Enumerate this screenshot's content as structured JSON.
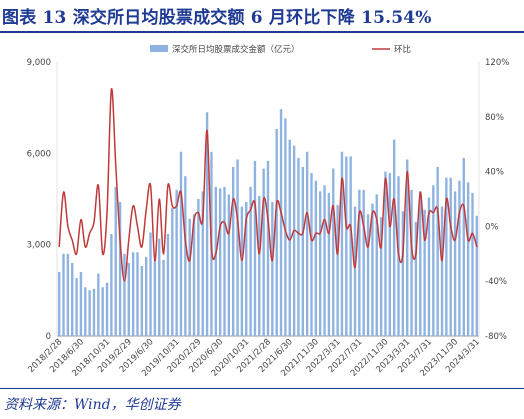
{
  "header": {
    "title": "图表 13  深交所日均股票成交额 6 月环比下降 15.54%"
  },
  "footer": {
    "source": "资料来源：Wind，华创证券"
  },
  "chart_data": {
    "type": "bar",
    "series": [
      {
        "name": "深交所日均股票成交金额（亿元）",
        "axis": "left",
        "kind": "bar",
        "color": "#8fb3e0",
        "values": [
          2100,
          2700,
          2700,
          2400,
          1900,
          2100,
          1600,
          1500,
          1550,
          2050,
          1600,
          1750,
          3350,
          4900,
          4400,
          2700,
          2400,
          2750,
          2750,
          2300,
          2600,
          3400,
          2500,
          3200,
          2500,
          3350,
          4200,
          4800,
          6050,
          5250,
          3850,
          4000,
          4500,
          4750,
          7350,
          6050,
          4900,
          4850,
          4900,
          4650,
          5550,
          5800,
          4250,
          4400,
          4900,
          5750,
          4600,
          5500,
          5750,
          4400,
          6800,
          7450,
          7150,
          6450,
          6250,
          5850,
          5550,
          6050,
          5350,
          5100,
          4750,
          4950,
          4700,
          5500,
          4300,
          6050,
          5900,
          5900,
          4250,
          4800,
          4800,
          4000,
          4350,
          4650,
          3900,
          5400,
          5350,
          6450,
          5250,
          4100,
          5800,
          4800,
          3750,
          4750,
          4150,
          4550,
          4950,
          5550,
          4250,
          5200,
          5200,
          4750,
          5100,
          5850,
          5050,
          4700,
          3950
        ]
      },
      {
        "name": "环比",
        "axis": "right",
        "kind": "line",
        "color": "#c0393b",
        "values": [
          -15,
          25,
          0,
          -10,
          -20,
          5,
          -15,
          -5,
          3,
          30,
          -20,
          10,
          100,
          45,
          -10,
          -40,
          -10,
          15,
          0,
          -15,
          12,
          30,
          -25,
          20,
          -20,
          30,
          15,
          15,
          25,
          -10,
          -25,
          5,
          10,
          5,
          70,
          -15,
          -20,
          0,
          3,
          -5,
          20,
          5,
          -25,
          5,
          12,
          17,
          -20,
          20,
          5,
          -25,
          17,
          10,
          -3,
          -10,
          -3,
          -5,
          -5,
          10,
          -10,
          -5,
          -5,
          5,
          -5,
          15,
          -20,
          35,
          0,
          0,
          -30,
          10,
          0,
          -15,
          10,
          5,
          -15,
          35,
          0,
          20,
          -20,
          -20,
          40,
          -15,
          -20,
          25,
          -10,
          10,
          10,
          12,
          -25,
          20,
          0,
          -10,
          10,
          15,
          -10,
          -5,
          -15
        ]
      }
    ],
    "x_tick_labels": [
      "2018/2/28",
      "2018/6/30",
      "2018/10/31",
      "2019/2/29",
      "2019/6/30",
      "2019/10/31",
      "2020/2/29",
      "2020/6/30",
      "2020/10/31",
      "2021/2/28",
      "2021/6/30",
      "2021/11/30",
      "2022/3/31",
      "2022/7/31",
      "2022/11/30",
      "2023/3/31",
      "2023/7/31",
      "2023/11/30",
      "2024/3/31"
    ],
    "left_axis": {
      "ylim": [
        0,
        9000
      ],
      "ticks": [
        "0",
        "3,000",
        "6,000",
        "9,000"
      ],
      "tick_values": [
        0,
        3000,
        6000,
        9000
      ]
    },
    "right_axis": {
      "ylim": [
        -80,
        120
      ],
      "ticks": [
        "-80%",
        "-40%",
        "0%",
        "40%",
        "80%",
        "120%"
      ],
      "tick_values": [
        -80,
        -40,
        0,
        40,
        80,
        120
      ]
    },
    "legend": {
      "placement": "top-center"
    },
    "grid": false
  }
}
